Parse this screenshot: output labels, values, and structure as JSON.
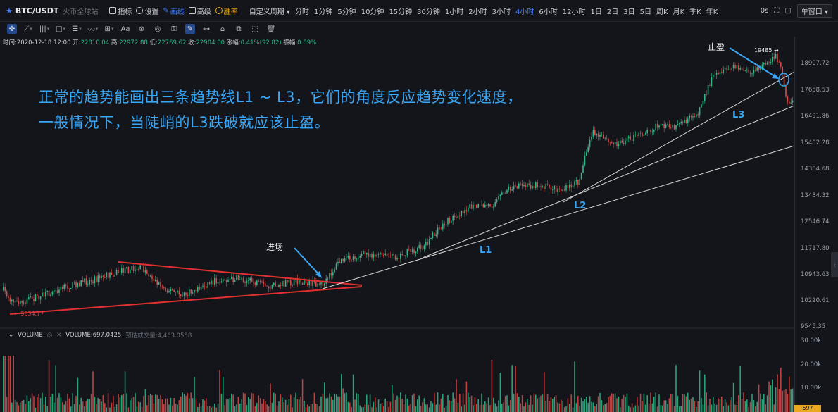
{
  "topbar": {
    "pair": "BTC/USDT",
    "exchange": "火币全球站",
    "tools": [
      "指标",
      "设置",
      "画线",
      "高级",
      "胜率"
    ],
    "custom_period": "自定义周期",
    "periods": [
      "分时",
      "1分钟",
      "5分钟",
      "10分钟",
      "15分钟",
      "30分钟",
      "1小时",
      "2小时",
      "3小时",
      "4小时",
      "6小时",
      "12小时",
      "1日",
      "2日",
      "3日",
      "5日",
      "周K",
      "月K",
      "季K",
      "年K"
    ],
    "active_period": "4小时",
    "seconds": "0s",
    "window_mode": "单窗口"
  },
  "drawbar": {
    "text_tool": "Aa"
  },
  "info": {
    "time_label": "时间:",
    "time": "2020-12-18 12:00",
    "open_label": "开:",
    "open": "22810.04",
    "high_label": "高:",
    "high": "22972.88",
    "low_label": "低:",
    "low": "22769.62",
    "close_label": "收:",
    "close": "22904.00",
    "change_label": "涨幅:",
    "change": "0.41%(92.82)",
    "amp_label": "振幅:",
    "amp": "0.89%"
  },
  "price_axis": [
    "18907.72",
    "17658.53",
    "16491.86",
    "15402.28",
    "14384.68",
    "13434.32",
    "12546.74",
    "11717.80",
    "10943.63",
    "10220.61",
    "9545.35"
  ],
  "volume_axis": [
    "30.00k",
    "20.00k",
    "10.00k"
  ],
  "volume": {
    "name": "VOLUME",
    "value": "VOLUME:697.0425",
    "forecast": "预估成交量:4,463.0558",
    "last": "697"
  },
  "markers": {
    "low": "9834.77",
    "high": "19485"
  },
  "annotation": {
    "line1": "正常的趋势能画出三条趋势线L1 ~ L3，它们的角度反应趋势变化速度，",
    "line2": "一般情况下，当陡峭的L3跌破就应该止盈。"
  },
  "labels": {
    "entry": "进场",
    "take_profit": "止盈",
    "l1": "L1",
    "l2": "L2",
    "l3": "L3"
  },
  "colors": {
    "up": "#2eb88a",
    "down": "#d84a4a",
    "accent": "#3d7eff",
    "annotation": "#39a7f5",
    "trendline": "#d8d8d8",
    "triangle": "#e03030"
  }
}
